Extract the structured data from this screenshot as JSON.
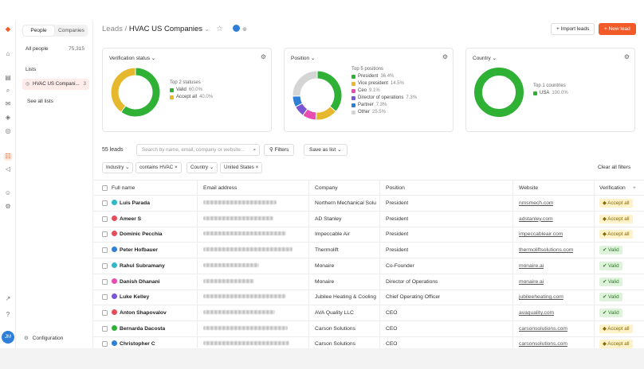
{
  "colors": {
    "accent": "#f25a28",
    "green": "#2eb135",
    "yellow": "#e5b82e",
    "pink": "#e94bb0",
    "purple": "#7a55d4",
    "blue": "#2f7fd8",
    "gray": "#d5d5d5"
  },
  "user": {
    "initials": "JM"
  },
  "sidebar": {
    "tabs": [
      "People",
      "Companies"
    ],
    "all_people": "All people",
    "all_people_count": "75,315",
    "lists_heading": "Lists",
    "active_list": "HVAC US Compani...",
    "active_list_count": "3",
    "see_all": "See all lists",
    "configuration": "Configuration"
  },
  "header": {
    "crumb_root": "Leads",
    "crumb_sep": "/",
    "title": "HVAC US Companies",
    "import_label": "Import leads",
    "new_label": "+ New lead"
  },
  "cards": {
    "verification": {
      "title": "Verification status",
      "legend_heading": "Top 2 statuses",
      "items": [
        {
          "label": "Valid",
          "pct": "60.0%",
          "value": 60,
          "color": "#2eb135"
        },
        {
          "label": "Accept all",
          "pct": "40.0%",
          "value": 40,
          "color": "#e5b82e"
        }
      ]
    },
    "position": {
      "title": "Position",
      "legend_heading": "Top 5 positions",
      "items": [
        {
          "label": "President",
          "pct": "36.4%",
          "value": 36.4,
          "color": "#2eb135"
        },
        {
          "label": "Vice president",
          "pct": "14.5%",
          "value": 14.5,
          "color": "#e5b82e"
        },
        {
          "label": "Ceo",
          "pct": "9.1%",
          "value": 9.1,
          "color": "#e94bb0"
        },
        {
          "label": "Director of operations",
          "pct": "7.3%",
          "value": 7.3,
          "color": "#7a55d4"
        },
        {
          "label": "Partner",
          "pct": "7.3%",
          "value": 7.3,
          "color": "#2f7fd8"
        },
        {
          "label": "Other",
          "pct": "25.5%",
          "value": 25.5,
          "color": "#d5d5d5"
        }
      ]
    },
    "country": {
      "title": "Country",
      "legend_heading": "Top 1 countries",
      "items": [
        {
          "label": "USA",
          "pct": "100.0%",
          "value": 100,
          "color": "#2eb135"
        }
      ]
    }
  },
  "toolbar": {
    "count": "55 leads",
    "search_placeholder": "Search by name, email, company or website...",
    "filters": "Filters",
    "save_as_list": "Save as list",
    "clear_all": "Clear all filters",
    "chips": [
      "Industry",
      "contains HVAC",
      "Country",
      "United States"
    ]
  },
  "table": {
    "columns": [
      "Full name",
      "Email address",
      "Company",
      "Position",
      "Website",
      "Verification"
    ],
    "rows": [
      {
        "name": "Luis Parada",
        "dot": "#2eb8c8",
        "company": "Northern Mechanical Solu",
        "position": "President",
        "website": "nmsmech.com",
        "status": "Accept all",
        "kind": "warn"
      },
      {
        "name": "Ameer S",
        "dot": "#e94b5a",
        "company": "AD Stanley",
        "position": "President",
        "website": "adstanley.com",
        "status": "Accept all",
        "kind": "warn"
      },
      {
        "name": "Dominic Pecchia",
        "dot": "#e94b5a",
        "company": "Impeccable Air",
        "position": "President",
        "website": "impeccableair.com",
        "status": "Accept all",
        "kind": "warn"
      },
      {
        "name": "Peter Hofbauer",
        "dot": "#2f7fd8",
        "company": "Thermolift",
        "position": "President",
        "website": "thermoliftsolutions.com",
        "status": "Valid",
        "kind": "ok"
      },
      {
        "name": "Rahul Subramany",
        "dot": "#2eb8c8",
        "company": "Monaire",
        "position": "Co-Founder",
        "website": "monaire.ai",
        "status": "Valid",
        "kind": "ok"
      },
      {
        "name": "Danish Dhanani",
        "dot": "#e94bb0",
        "company": "Monaire",
        "position": "Director of Operations",
        "website": "monaire.ai",
        "status": "Valid",
        "kind": "ok"
      },
      {
        "name": "Luke Kelley",
        "dot": "#7a55d4",
        "company": "Jubilee Heating & Cooling",
        "position": "Chief Operating Officer",
        "website": "jubileeheating.com",
        "status": "Valid",
        "kind": "ok"
      },
      {
        "name": "Anton Shapovalov",
        "dot": "#e94b5a",
        "company": "AVA Quality LLC",
        "position": "CEO",
        "website": "avaquality.com",
        "status": "Valid",
        "kind": "ok"
      },
      {
        "name": "Bernarda Dacosta",
        "dot": "#2eb135",
        "company": "Carson Solutions",
        "position": "CEO",
        "website": "carsonsolutions.com",
        "status": "Accept all",
        "kind": "warn"
      },
      {
        "name": "Christopher C",
        "dot": "#2f7fd8",
        "company": "Carson Solutions",
        "position": "CEO",
        "website": "carsonsolutions.com",
        "status": "Accept all",
        "kind": "warn"
      }
    ]
  }
}
